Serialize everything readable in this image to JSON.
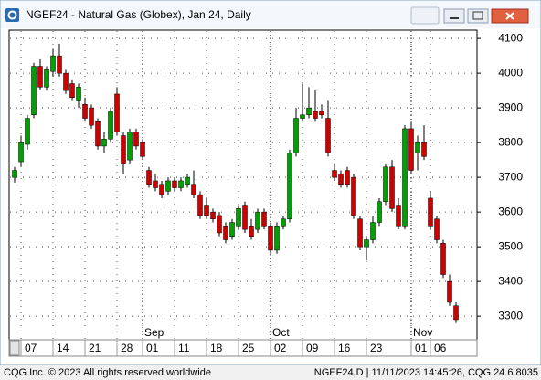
{
  "chart_data": {
    "type": "candlestick",
    "title": "NGEF24 - Natural Gas (Globex), Jan 24, Daily",
    "categories": [
      null,
      "07",
      null,
      null,
      null,
      null,
      "14",
      null,
      null,
      null,
      null,
      "21",
      null,
      null,
      null,
      null,
      "28",
      null,
      null,
      null,
      "01",
      null,
      null,
      null,
      null,
      "11",
      null,
      null,
      null,
      null,
      "18",
      null,
      null,
      null,
      null,
      "25",
      null,
      null,
      null,
      null,
      "02",
      null,
      null,
      null,
      null,
      "09",
      null,
      null,
      null,
      null,
      "16",
      null,
      null,
      null,
      null,
      "23",
      null,
      null,
      null,
      null,
      null,
      null,
      "01",
      null,
      null,
      "06",
      null,
      null,
      null,
      null
    ],
    "month_labels": [
      null,
      null,
      null,
      null,
      null,
      null,
      null,
      null,
      null,
      null,
      null,
      null,
      null,
      null,
      null,
      null,
      null,
      null,
      null,
      null,
      "Sep",
      null,
      null,
      null,
      null,
      null,
      null,
      null,
      null,
      null,
      null,
      null,
      null,
      null,
      null,
      null,
      null,
      null,
      null,
      null,
      "Oct",
      null,
      null,
      null,
      null,
      null,
      null,
      null,
      null,
      null,
      null,
      null,
      null,
      null,
      null,
      null,
      null,
      null,
      null,
      null,
      null,
      null,
      "Nov",
      null,
      null,
      null,
      null,
      null,
      null,
      null
    ],
    "open": [
      3700,
      3745,
      3795,
      3880,
      4020,
      3960,
      4005,
      4050,
      4000,
      3970,
      3920,
      3910,
      3900,
      3860,
      3790,
      3810,
      3940,
      3820,
      3750,
      3830,
      3800,
      3720,
      3690,
      3680,
      3660,
      3690,
      3670,
      3680,
      3680,
      3650,
      3620,
      3600,
      3590,
      3560,
      3530,
      3560,
      3620,
      3560,
      3550,
      3600,
      3560,
      3490,
      3560,
      3580,
      3770,
      3870,
      3880,
      3890,
      3890,
      3870,
      3720,
      3710,
      3720,
      3700,
      3580,
      3500,
      3520,
      3570,
      3630,
      3730,
      3620,
      3560,
      3840,
      3770,
      3800,
      3640,
      3580,
      3510,
      3400,
      3330
    ],
    "high": [
      3730,
      3820,
      3880,
      4030,
      4040,
      4020,
      4070,
      4085,
      4010,
      3980,
      3970,
      3930,
      3910,
      3870,
      3830,
      3900,
      3960,
      3830,
      3840,
      3840,
      3810,
      3730,
      3710,
      3690,
      3700,
      3700,
      3700,
      3710,
      3720,
      3660,
      3640,
      3610,
      3600,
      3570,
      3580,
      3620,
      3630,
      3580,
      3610,
      3610,
      3570,
      3570,
      3590,
      3780,
      3900,
      3970,
      3960,
      3950,
      3910,
      3920,
      3740,
      3720,
      3730,
      3710,
      3590,
      3530,
      3590,
      3640,
      3740,
      3750,
      3640,
      3850,
      3860,
      3820,
      3850,
      3660,
      3590,
      3520,
      3420,
      3340
    ],
    "low": [
      3685,
      3730,
      3780,
      3870,
      3950,
      3950,
      3990,
      3990,
      3940,
      3920,
      3900,
      3860,
      3840,
      3780,
      3770,
      3800,
      3820,
      3710,
      3740,
      3780,
      3750,
      3670,
      3660,
      3640,
      3650,
      3660,
      3660,
      3670,
      3640,
      3580,
      3580,
      3570,
      3530,
      3510,
      3520,
      3550,
      3540,
      3520,
      3540,
      3550,
      3480,
      3480,
      3550,
      3570,
      3760,
      3860,
      3870,
      3860,
      3870,
      3760,
      3690,
      3670,
      3670,
      3580,
      3490,
      3460,
      3510,
      3560,
      3620,
      3600,
      3550,
      3550,
      3710,
      3720,
      3750,
      3550,
      3510,
      3410,
      3330,
      3280
    ],
    "close": [
      3720,
      3800,
      3870,
      4020,
      3960,
      4010,
      4050,
      4000,
      3950,
      3930,
      3960,
      3870,
      3850,
      3790,
      3810,
      3890,
      3830,
      3740,
      3830,
      3790,
      3760,
      3680,
      3670,
      3650,
      3690,
      3670,
      3690,
      3700,
      3650,
      3590,
      3590,
      3580,
      3540,
      3520,
      3570,
      3610,
      3550,
      3530,
      3600,
      3560,
      3490,
      3560,
      3580,
      3770,
      3870,
      3880,
      3900,
      3870,
      3880,
      3770,
      3700,
      3680,
      3680,
      3590,
      3500,
      3520,
      3570,
      3630,
      3730,
      3610,
      3560,
      3840,
      3720,
      3800,
      3760,
      3560,
      3520,
      3420,
      3340,
      3290
    ],
    "up_color": "#00a000",
    "down_color": "#d00000",
    "ylim": [
      3232,
      4124
    ],
    "yticks": [
      3300,
      3400,
      3500,
      3600,
      3700,
      3800,
      3900,
      4000,
      4100
    ],
    "grid": true
  },
  "footer": {
    "copyright": "CQG Inc. © 2023 All rights reserved worldwide",
    "status": "NGEF24,D | 11/11/2023 14:45:26, CQG 24.6.8035"
  }
}
